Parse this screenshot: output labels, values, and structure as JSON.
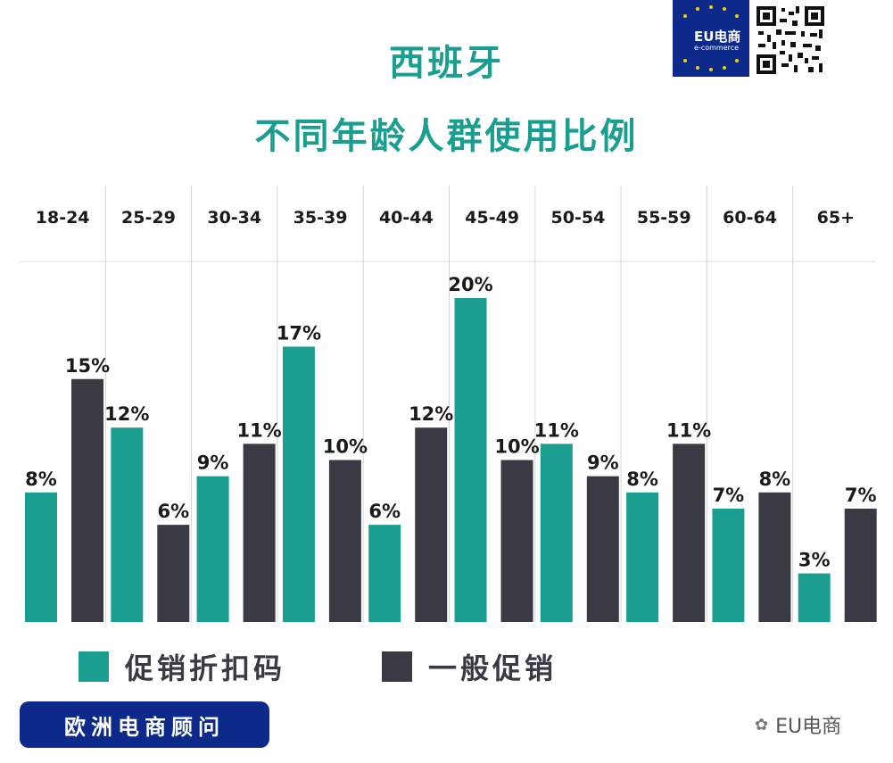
{
  "title": "西班牙",
  "subtitle": "不同年龄人群使用比例",
  "logo": {
    "text": "EU电商",
    "sub": "e-commerce"
  },
  "footer": {
    "badge": "欧洲电商顾问",
    "watermark": "EU电商"
  },
  "colors": {
    "teal": "#1a9e8f",
    "dark": "#3a3a44",
    "navy": "#0d2a8a"
  },
  "chart_data": {
    "type": "bar",
    "title": "西班牙 不同年龄人群使用比例",
    "categories": [
      "18-24",
      "25-29",
      "30-34",
      "35-39",
      "40-44",
      "45-49",
      "50-54",
      "55-59",
      "60-64",
      "65+"
    ],
    "series": [
      {
        "name": "促销折扣码",
        "color": "#1a9e8f",
        "values": [
          8,
          12,
          9,
          17,
          6,
          20,
          11,
          8,
          7,
          3
        ]
      },
      {
        "name": "一般促销",
        "color": "#3a3a44",
        "values": [
          15,
          6,
          11,
          10,
          12,
          10,
          9,
          11,
          8,
          7
        ]
      }
    ],
    "value_suffix": "%",
    "ylim": [
      0,
      20
    ],
    "grid": "vertical separators between age groups",
    "legend_position": "bottom-left"
  }
}
